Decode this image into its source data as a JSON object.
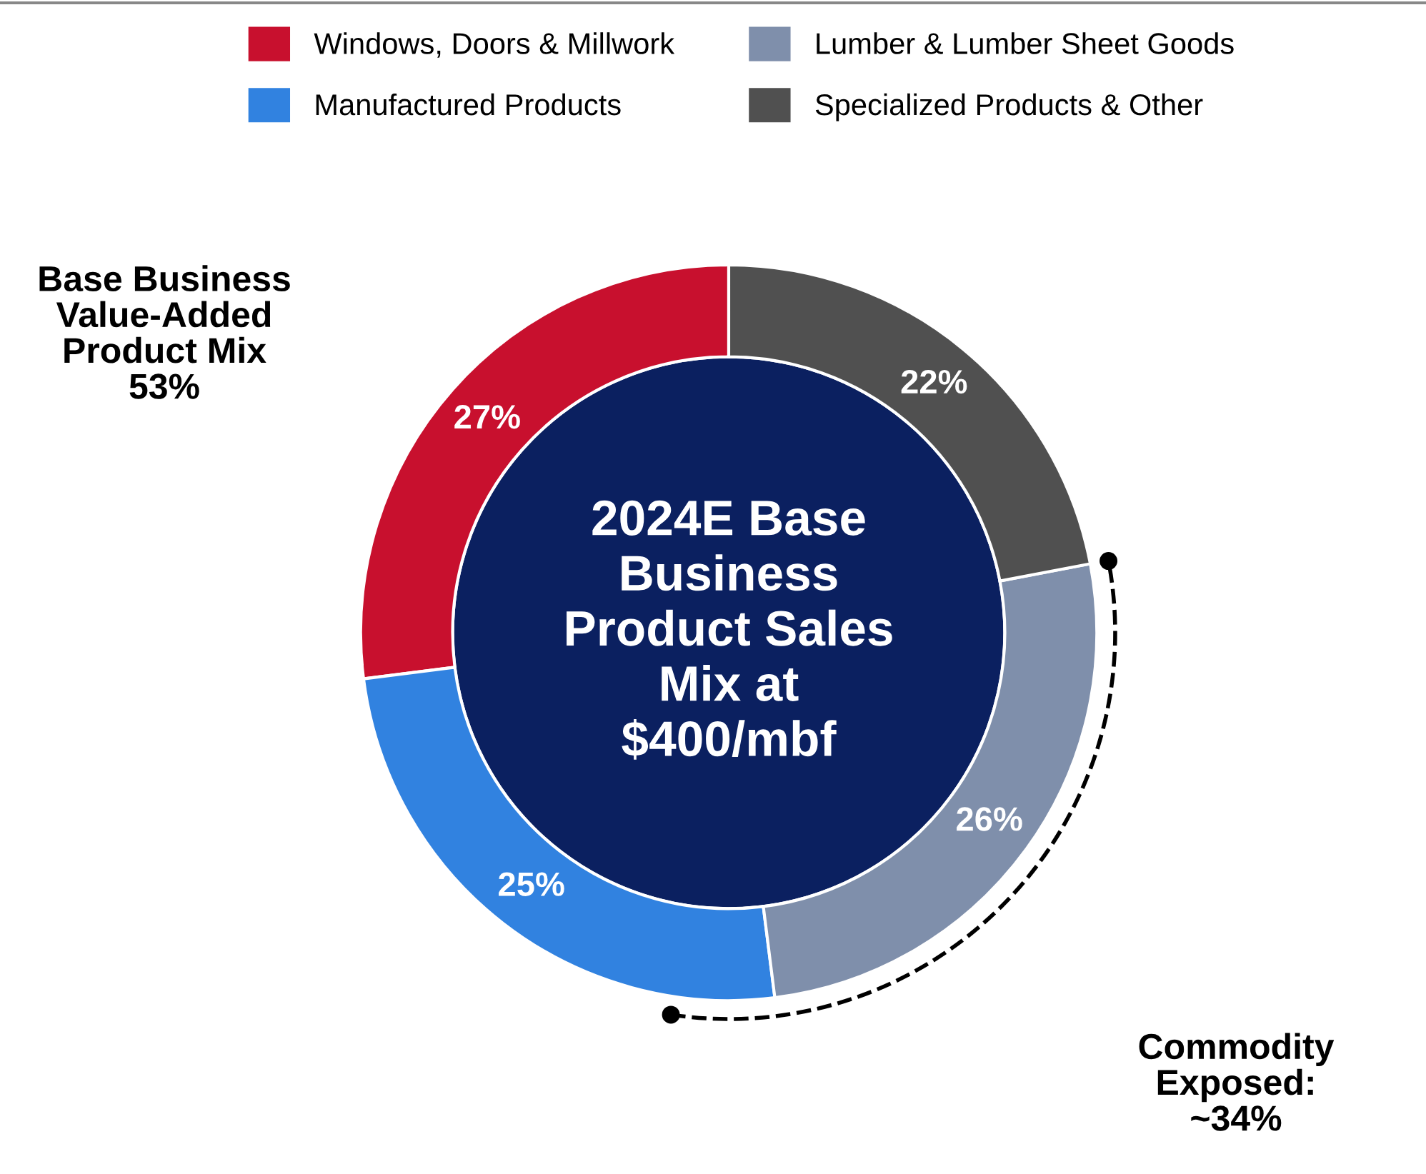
{
  "chart_data": {
    "type": "donut",
    "title": "2024E Base\nBusiness\nProduct Sales\nMix at\n$400/mbf",
    "categories": [
      "Windows, Doors & Millwork",
      "Manufactured Products",
      "Lumber & Lumber Sheet Goods",
      "Specialized Products & Other"
    ],
    "values": [
      27,
      25,
      26,
      22
    ],
    "colors": [
      "#c8102e",
      "#3182e0",
      "#7f8fab",
      "#505050"
    ],
    "value_labels": [
      "27%",
      "25%",
      "26%",
      "22%"
    ],
    "legend": "top",
    "annotations": [
      "Base Business\nValue-Added\nProduct Mix\n53%",
      "Commodity\nExposed:\n~34%"
    ]
  }
}
